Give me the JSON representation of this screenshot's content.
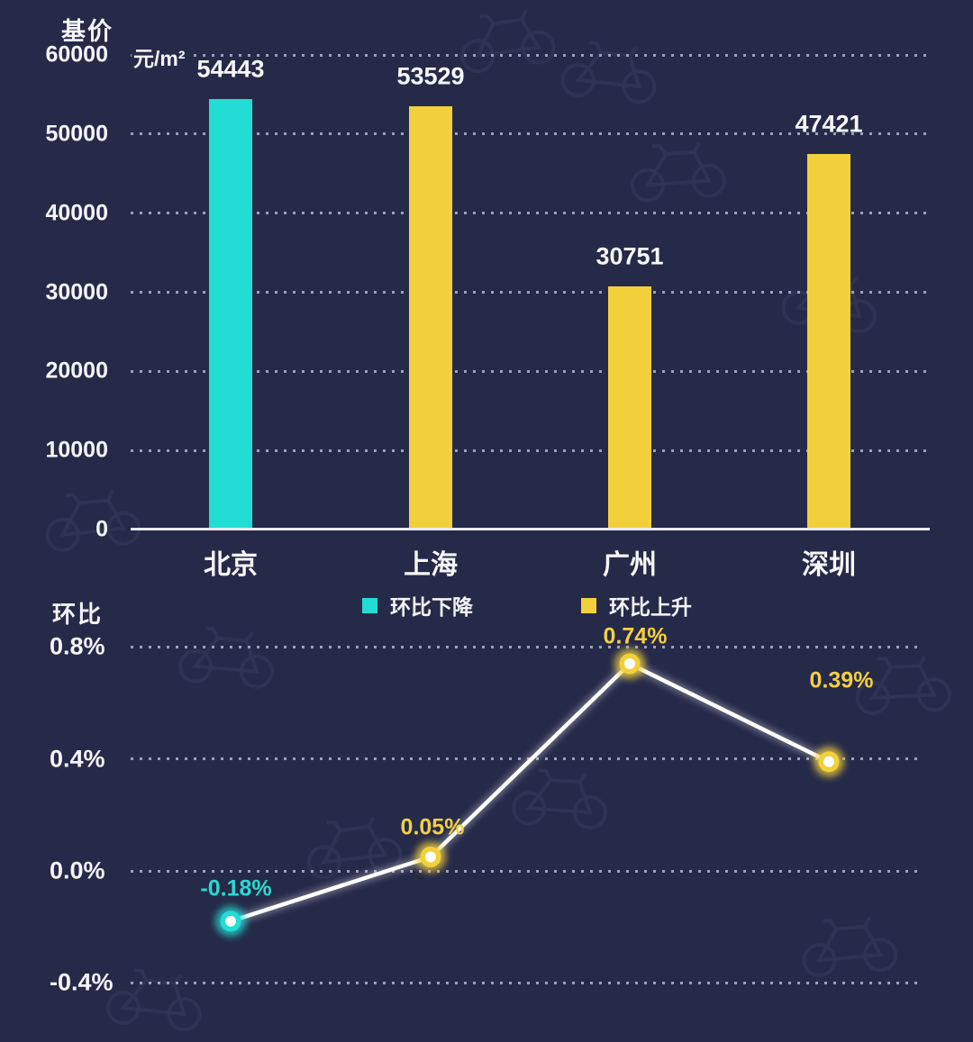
{
  "colors": {
    "background": "#262a49",
    "cyan": "#21ddd4",
    "yellow": "#f2d03b",
    "grid_dot": "#b0b5cd",
    "axis_line": "#e8eaf2",
    "line_color": "#ffffff",
    "label_cyan": "#2bd8d0",
    "label_yellow": "#f2d042",
    "text": "#f4f5f9"
  },
  "bar_section": {
    "title": "基价",
    "unit": "元/m²"
  },
  "line_section": {
    "title": "环比"
  },
  "legend": {
    "items": [
      {
        "label": "环比下降",
        "color": "#21ddd4"
      },
      {
        "label": "环比上升",
        "color": "#f2d03b"
      }
    ]
  },
  "chart_data": [
    {
      "type": "bar",
      "title": "基价",
      "unit_label": "元/m²",
      "categories": [
        "北京",
        "上海",
        "广州",
        "深圳"
      ],
      "values": [
        54443,
        53529,
        30751,
        47421
      ],
      "data_labels": [
        "54443",
        "53529",
        "30751",
        "47421"
      ],
      "bar_colors": [
        "#21ddd4",
        "#f2d03b",
        "#f2d03b",
        "#f2d03b"
      ],
      "y_ticks": [
        0,
        10000,
        20000,
        30000,
        40000,
        50000,
        60000
      ],
      "y_tick_labels": [
        "0",
        "10000",
        "20000",
        "30000",
        "40000",
        "50000",
        "60000"
      ],
      "ylim": [
        0,
        60000
      ],
      "grid": "dotted-horizontal",
      "legend_entries": [
        "环比下降",
        "环比上升"
      ],
      "legend_position": "below-axis"
    },
    {
      "type": "line",
      "title": "环比",
      "categories": [
        "北京",
        "上海",
        "广州",
        "深圳"
      ],
      "values": [
        -0.18,
        0.05,
        0.74,
        0.39
      ],
      "data_labels": [
        "-0.18%",
        "0.05%",
        "0.74%",
        "0.39%"
      ],
      "label_colors": [
        "#2bd8d0",
        "#f2d042",
        "#f2d042",
        "#f2d042"
      ],
      "point_colors": [
        "#21ddd4",
        "#f2d03b",
        "#f2d03b",
        "#f2d03b"
      ],
      "line_color": "#ffffff",
      "y_ticks": [
        0.8,
        0.4,
        0.0,
        -0.4
      ],
      "y_tick_labels": [
        "0.8%",
        "0.4%",
        "0.0%",
        "-0.4%"
      ],
      "ylim": [
        -0.4,
        0.8
      ],
      "grid": "dotted-horizontal"
    }
  ]
}
